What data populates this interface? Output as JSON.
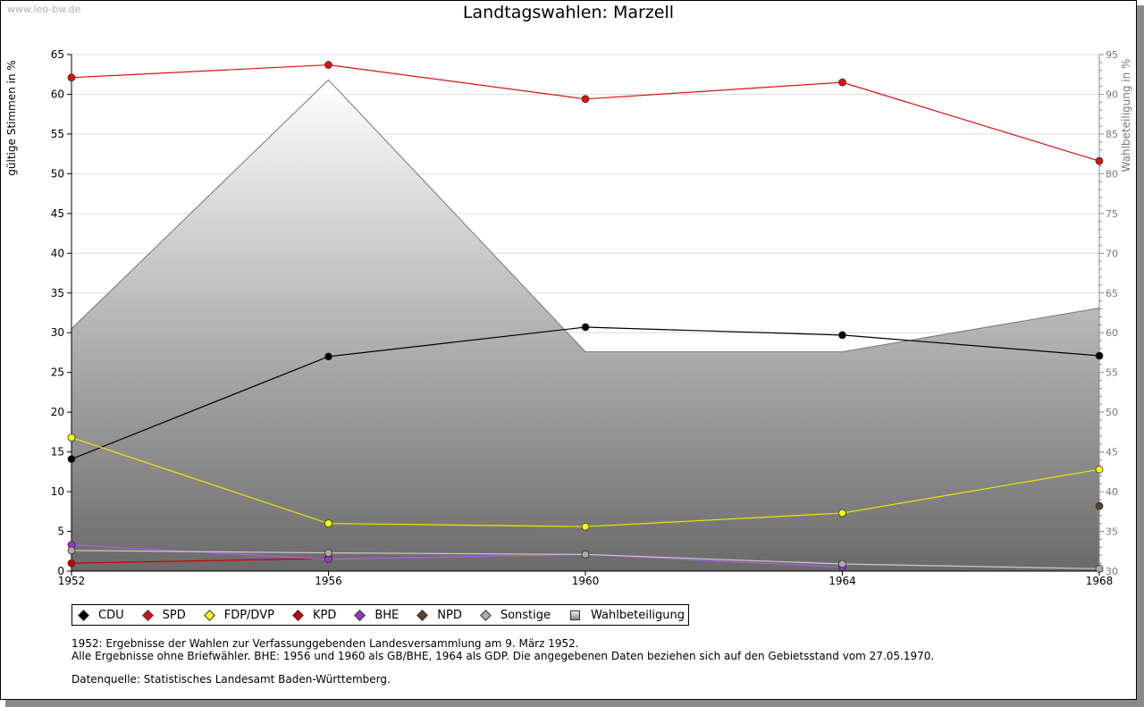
{
  "watermark": "www.leo-bw.de",
  "title": "Landtagswahlen: Marzell",
  "chart_data": {
    "type": "line",
    "title": "Landtagswahlen: Marzell",
    "ylabel": "gültige Stimmen in %",
    "y2label": "Wahlbeteiligung in %",
    "ylim": [
      0,
      65
    ],
    "y2lim": [
      30,
      95
    ],
    "yticks": [
      0,
      5,
      10,
      15,
      20,
      25,
      30,
      35,
      40,
      45,
      50,
      55,
      60,
      65
    ],
    "y2ticks": [
      30,
      35,
      40,
      45,
      50,
      55,
      60,
      65,
      70,
      75,
      80,
      85,
      90,
      95
    ],
    "x": [
      1952,
      1956,
      1960,
      1964,
      1968
    ],
    "xticks": [
      "1952",
      "1956",
      "1960",
      "1964",
      "1968"
    ],
    "area": {
      "name": "Wahlbeteiligung",
      "axis": "right",
      "values": [
        60.5,
        91.8,
        57.6,
        57.6,
        63.1
      ]
    },
    "series": [
      {
        "name": "CDU",
        "color": "#000000",
        "line": "#000000",
        "values": [
          14.1,
          27.0,
          30.7,
          29.7,
          27.1
        ]
      },
      {
        "name": "SPD",
        "color": "#dd1111",
        "line": "#dd1111",
        "values": [
          62.1,
          63.7,
          59.4,
          61.5,
          51.6
        ]
      },
      {
        "name": "FDP/DVP",
        "color": "#ffff00",
        "line": "#e8e800",
        "values": [
          16.8,
          6.0,
          5.6,
          7.3,
          12.8
        ]
      },
      {
        "name": "KPD",
        "color": "#cc0000",
        "line": "#cc0000",
        "values": [
          1.0,
          1.6,
          null,
          null,
          null
        ]
      },
      {
        "name": "BHE",
        "color": "#9933cc",
        "line": "#b060e0",
        "values": [
          3.3,
          1.5,
          2.1,
          0.5,
          null
        ]
      },
      {
        "name": "NPD",
        "color": "#5a4030",
        "line": "#5a4030",
        "values": [
          null,
          null,
          null,
          null,
          8.2
        ]
      },
      {
        "name": "Sonstige",
        "color": "#aaaaaa",
        "line": "#cccccc",
        "values": [
          2.6,
          2.3,
          2.1,
          0.9,
          0.3
        ]
      }
    ]
  },
  "legend": [
    {
      "label": "CDU",
      "color": "#000000",
      "kind": "marker"
    },
    {
      "label": "SPD",
      "color": "#dd1111",
      "kind": "marker"
    },
    {
      "label": "FDP/DVP",
      "color": "#ffff00",
      "kind": "marker"
    },
    {
      "label": "KPD",
      "color": "#cc0000",
      "kind": "marker"
    },
    {
      "label": "BHE",
      "color": "#9933cc",
      "kind": "marker"
    },
    {
      "label": "NPD",
      "color": "#5a4030",
      "kind": "marker"
    },
    {
      "label": "Sonstige",
      "color": "#aaaaaa",
      "kind": "marker"
    },
    {
      "label": "Wahlbeteiligung",
      "color": "#bbbbbb",
      "kind": "box"
    }
  ],
  "notes": {
    "line1": "1952: Ergebnisse der Wahlen zur Verfassunggebenden Landesversammlung am 9. März 1952.",
    "line2": "Alle Ergebnisse ohne Briefwähler. BHE: 1956 und 1960 als GB/BHE, 1964 als GDP. Die angegebenen Daten beziehen sich auf den Gebietsstand vom 27.05.1970.",
    "source": "Datenquelle: Statistisches Landesamt Baden-Württemberg."
  }
}
